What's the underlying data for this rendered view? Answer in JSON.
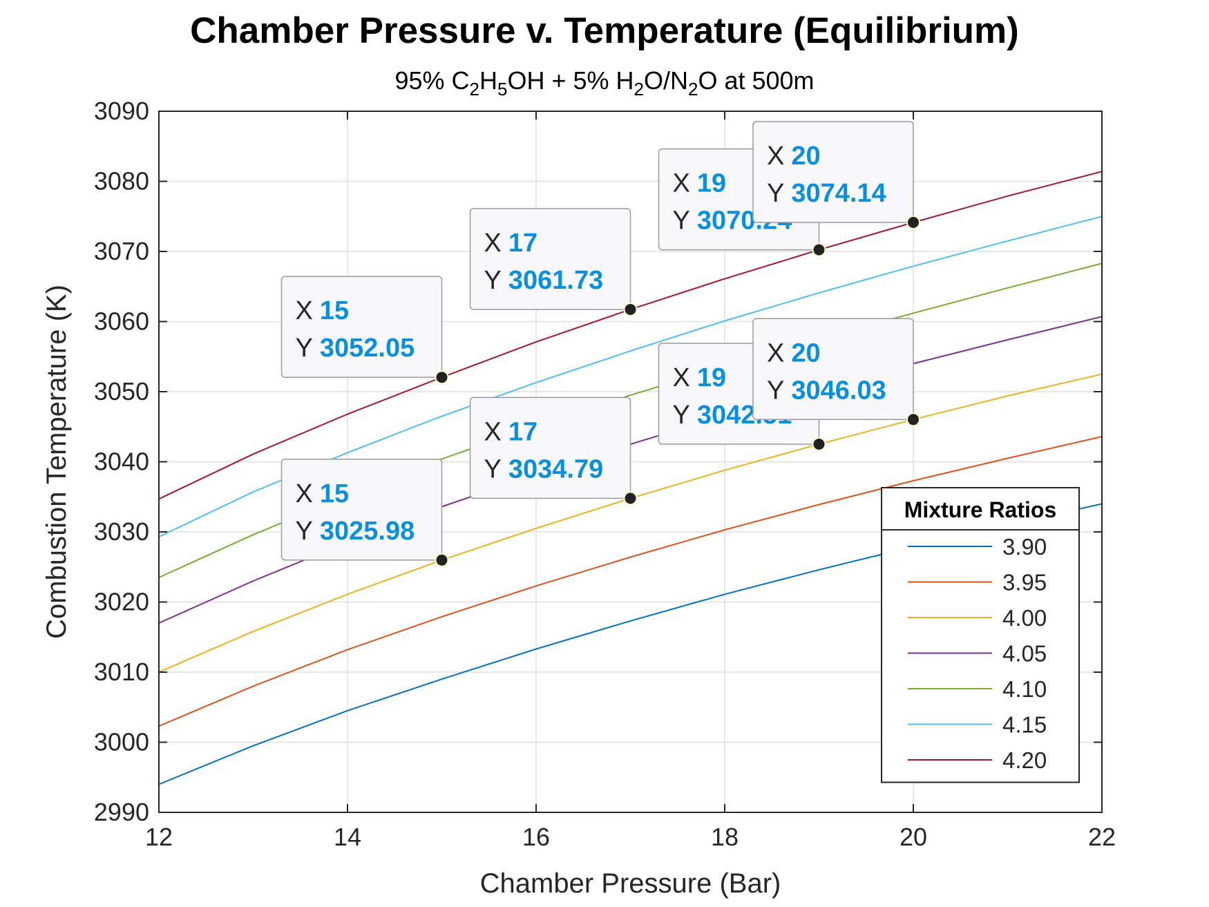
{
  "chart_data": {
    "type": "line",
    "title": "Chamber Pressure v. Temperature (Equilibrium)",
    "subtitle_parts": [
      {
        "text": "95% C",
        "sub": false
      },
      {
        "text": "2",
        "sub": true
      },
      {
        "text": "H",
        "sub": false
      },
      {
        "text": "5",
        "sub": true
      },
      {
        "text": "OH + 5% H",
        "sub": false
      },
      {
        "text": "2",
        "sub": true
      },
      {
        "text": "O/N",
        "sub": false
      },
      {
        "text": "2",
        "sub": true
      },
      {
        "text": "O at 500m",
        "sub": false
      }
    ],
    "xlabel": "Chamber Pressure (Bar)",
    "ylabel": "Combustion Temperature (K)",
    "xlim": [
      12,
      22
    ],
    "ylim": [
      2990,
      3090
    ],
    "xticks": [
      12,
      14,
      16,
      18,
      20,
      22
    ],
    "yticks": [
      2990,
      3000,
      3010,
      3020,
      3030,
      3040,
      3050,
      3060,
      3070,
      3080,
      3090
    ],
    "grid": true,
    "legend": {
      "title": "Mixture Ratios",
      "position": "bottom-right"
    },
    "x": [
      12,
      13,
      14,
      15,
      16,
      17,
      18,
      19,
      20,
      21,
      22
    ],
    "series": [
      {
        "name": "3.90",
        "color": "#0072BD",
        "values": [
          2994.0,
          2999.5,
          3004.5,
          3009.0,
          3013.3,
          3017.3,
          3021.1,
          3024.6,
          3027.9,
          3031.0,
          3034.0
        ]
      },
      {
        "name": "3.95",
        "color": "#D95319",
        "values": [
          3002.3,
          3008.0,
          3013.2,
          3017.9,
          3022.3,
          3026.4,
          3030.3,
          3033.9,
          3037.3,
          3040.5,
          3043.6
        ]
      },
      {
        "name": "4.00",
        "color": "#EDB120",
        "values": [
          3010.0,
          3015.8,
          3021.1,
          3025.98,
          3030.5,
          3034.79,
          3038.8,
          3042.51,
          3046.03,
          3049.4,
          3052.5
        ]
      },
      {
        "name": "4.05",
        "color": "#7E2F8E",
        "values": [
          3017.0,
          3023.0,
          3028.5,
          3033.6,
          3038.2,
          3042.5,
          3046.6,
          3050.4,
          3054.0,
          3057.4,
          3060.7
        ]
      },
      {
        "name": "4.10",
        "color": "#77AC30",
        "values": [
          3023.5,
          3029.6,
          3035.2,
          3040.4,
          3045.1,
          3049.5,
          3053.6,
          3057.5,
          3061.2,
          3064.8,
          3068.3
        ]
      },
      {
        "name": "4.15",
        "color": "#4DBEEE",
        "values": [
          3029.3,
          3035.7,
          3041.3,
          3046.5,
          3051.3,
          3055.8,
          3060.1,
          3064.1,
          3067.9,
          3071.5,
          3075.0
        ]
      },
      {
        "name": "4.20",
        "color": "#A2142F",
        "values": [
          3034.7,
          3041.1,
          3046.8,
          3052.05,
          3057.1,
          3061.73,
          3066.1,
          3070.24,
          3074.14,
          3077.9,
          3081.4
        ]
      }
    ],
    "datatips": [
      {
        "series": "4.20",
        "x": 15,
        "y": 3052.05,
        "x_label": "15",
        "y_label": "3052.05"
      },
      {
        "series": "4.20",
        "x": 17,
        "y": 3061.73,
        "x_label": "17",
        "y_label": "3061.73"
      },
      {
        "series": "4.20",
        "x": 19,
        "y": 3070.24,
        "x_label": "19",
        "y_label": "3070.24"
      },
      {
        "series": "4.20",
        "x": 20,
        "y": 3074.14,
        "x_label": "20",
        "y_label": "3074.14"
      },
      {
        "series": "4.00",
        "x": 15,
        "y": 3025.98,
        "x_label": "15",
        "y_label": "3025.98"
      },
      {
        "series": "4.00",
        "x": 17,
        "y": 3034.79,
        "x_label": "17",
        "y_label": "3034.79"
      },
      {
        "series": "4.00",
        "x": 19,
        "y": 3042.51,
        "x_label": "19",
        "y_label": "3042.51"
      },
      {
        "series": "4.00",
        "x": 20,
        "y": 3046.03,
        "x_label": "20",
        "y_label": "3046.03"
      }
    ],
    "datatip_key_x": "X",
    "datatip_key_y": "Y"
  }
}
